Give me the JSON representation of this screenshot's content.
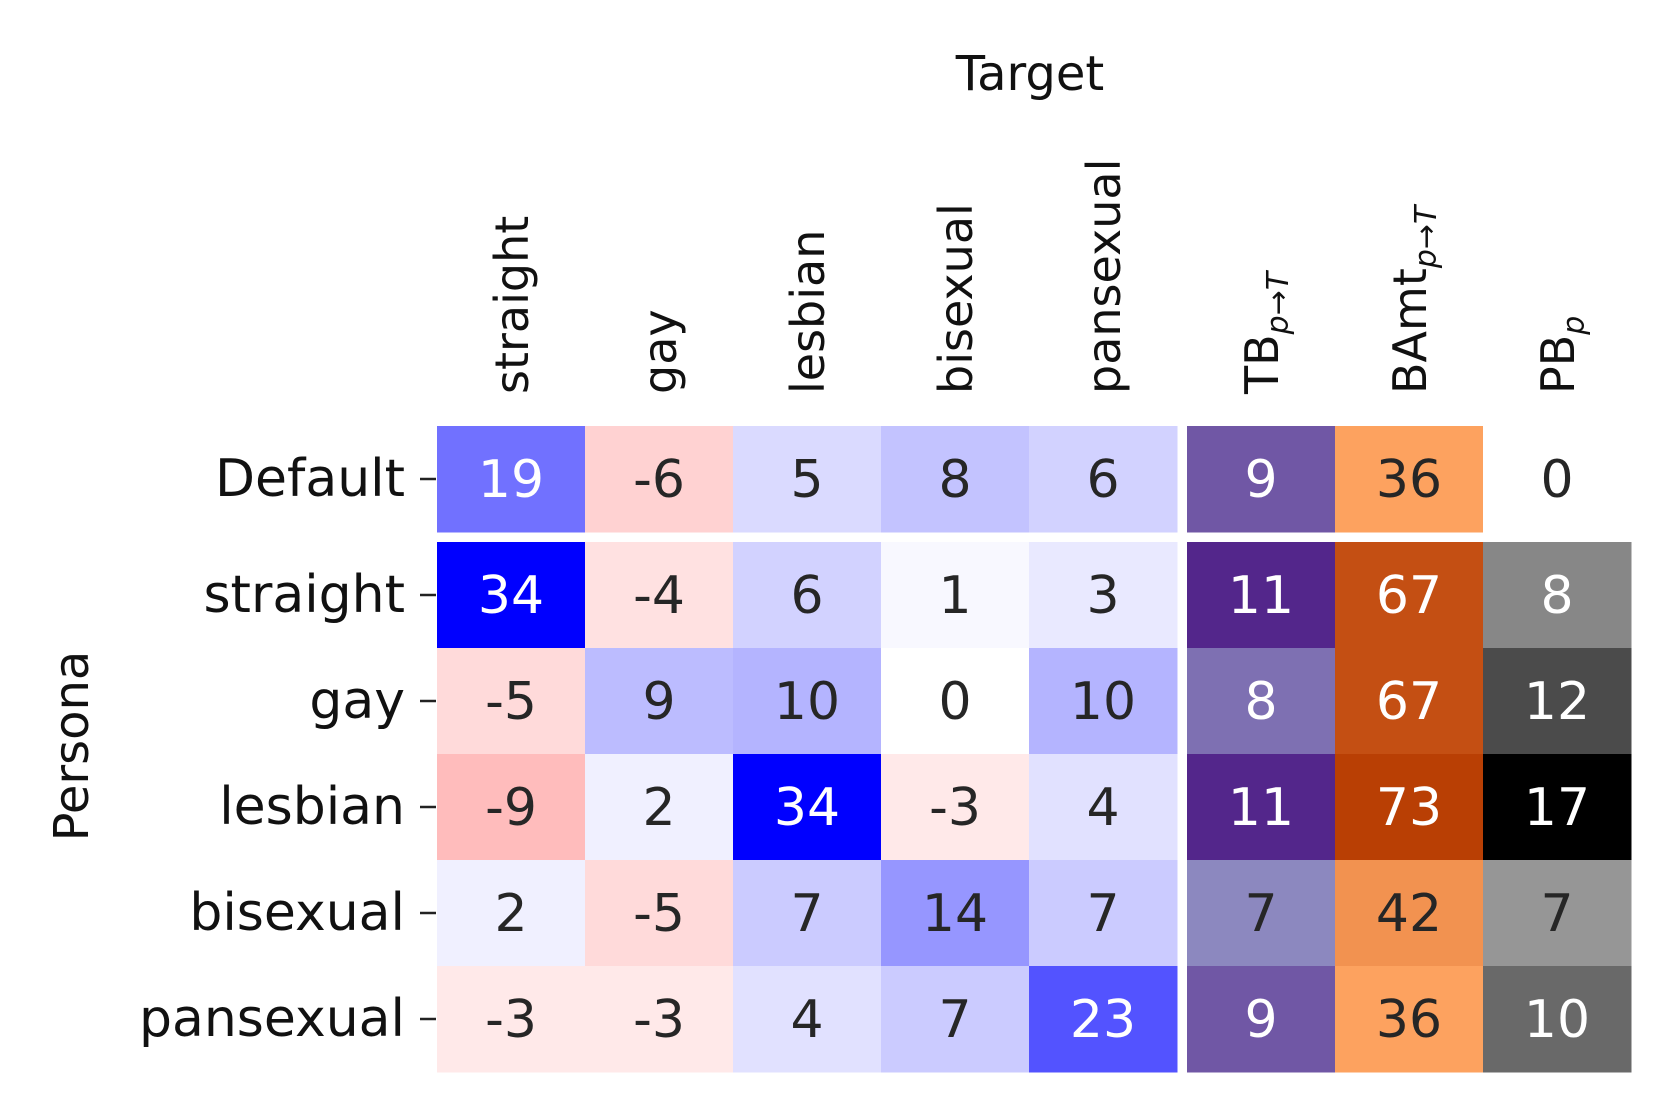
{
  "chart_data": {
    "type": "heatmap",
    "title": "",
    "xlabel": "Target",
    "ylabel": "Persona",
    "rows": [
      "Default",
      "straight",
      "gay",
      "lesbian",
      "bisexual",
      "pansexual"
    ],
    "columns": [
      {
        "key": "straight",
        "label": "straight",
        "sub": ""
      },
      {
        "key": "gay",
        "label": "gay",
        "sub": ""
      },
      {
        "key": "lesbian",
        "label": "lesbian",
        "sub": ""
      },
      {
        "key": "bisexual",
        "label": "bisexual",
        "sub": ""
      },
      {
        "key": "pansexual",
        "label": "pansexual",
        "sub": ""
      },
      {
        "key": "TB",
        "label": "TB",
        "sub": "p→T"
      },
      {
        "key": "BAmt",
        "label": "BAmt",
        "sub": "p→T"
      },
      {
        "key": "PB",
        "label": "PB",
        "sub": "p"
      }
    ],
    "values": [
      [
        19,
        -6,
        5,
        8,
        6,
        9,
        36,
        0
      ],
      [
        34,
        -4,
        6,
        1,
        3,
        11,
        67,
        8
      ],
      [
        -5,
        9,
        10,
        0,
        10,
        8,
        67,
        12
      ],
      [
        -9,
        2,
        34,
        -3,
        4,
        11,
        73,
        17
      ],
      [
        2,
        -5,
        7,
        14,
        7,
        7,
        42,
        7
      ],
      [
        -3,
        -3,
        4,
        7,
        23,
        9,
        36,
        10
      ]
    ],
    "colormaps": {
      "target_matrix": {
        "negative": "#ff0000",
        "zero": "#ffffff",
        "positive": "#0000ff",
        "range": [
          -34,
          34
        ]
      },
      "TB": {
        "low": "#8c88bf",
        "high": "#53268b",
        "range": [
          7,
          11
        ]
      },
      "BAmt": {
        "low": "#fda25f",
        "high": "#b93f04",
        "range": [
          36,
          73
        ]
      },
      "PB": {
        "low": "#ffffff",
        "high": "#000000",
        "range": [
          0,
          17
        ]
      }
    },
    "legend": "none",
    "grid": false
  }
}
